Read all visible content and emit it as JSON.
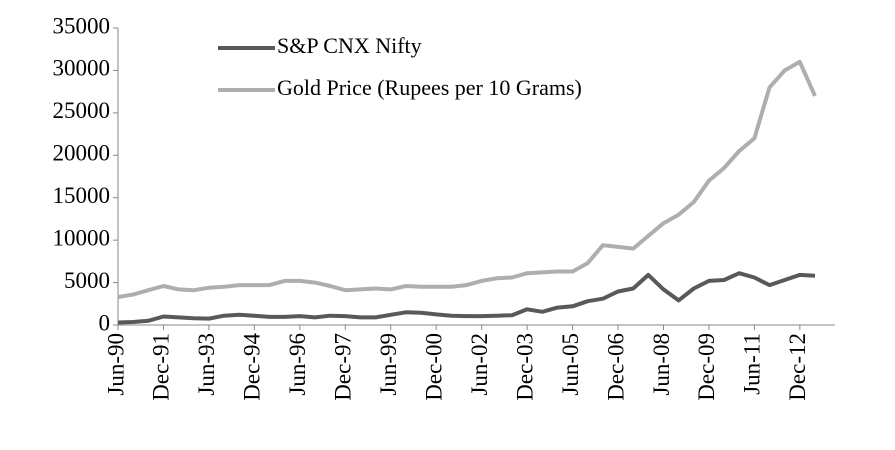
{
  "chart_data": {
    "type": "line",
    "categories": [
      "Jun-90",
      null,
      null,
      "Dec-91",
      null,
      null,
      "Jun-93",
      null,
      null,
      "Dec-94",
      null,
      null,
      "Jun-96",
      null,
      null,
      "Dec-97",
      null,
      null,
      "Jun-99",
      null,
      null,
      "Dec-00",
      null,
      null,
      "Jun-02",
      null,
      null,
      "Dec-03",
      null,
      null,
      "Jun-05",
      null,
      null,
      "Dec-06",
      null,
      null,
      "Jun-08",
      null,
      null,
      "Dec-09",
      null,
      null,
      "Jun-11",
      null,
      null,
      "Dec-12",
      null
    ],
    "series": [
      {
        "name": "S&P CNX Nifty",
        "color": "#595959",
        "values": [
          300,
          350,
          500,
          1000,
          900,
          800,
          750,
          1100,
          1200,
          1100,
          950,
          950,
          1050,
          900,
          1100,
          1050,
          900,
          900,
          1200,
          1500,
          1450,
          1250,
          1100,
          1050,
          1050,
          1100,
          1150,
          1850,
          1550,
          2050,
          2200,
          2800,
          3100,
          3950,
          4300,
          5900,
          4200,
          2900,
          4300,
          5200,
          5300,
          6100,
          5600,
          4700,
          5300,
          5900,
          5800
        ]
      },
      {
        "name": "Gold Price (Rupees per 10 Grams)",
        "color": "#aeaeae",
        "values": [
          3300,
          3600,
          4100,
          4600,
          4200,
          4100,
          4400,
          4500,
          4700,
          4700,
          4700,
          5200,
          5200,
          5000,
          4600,
          4100,
          4200,
          4300,
          4200,
          4600,
          4500,
          4500,
          4500,
          4700,
          5200,
          5500,
          5600,
          6100,
          6200,
          6300,
          6300,
          7300,
          9400,
          9200,
          9000,
          10500,
          12000,
          13000,
          14500,
          17000,
          18500,
          20500,
          22000,
          28000,
          30000,
          31000,
          27000
        ]
      }
    ],
    "ylim": [
      0,
      35000
    ],
    "yticks": [
      0,
      5000,
      10000,
      15000,
      20000,
      25000,
      30000,
      35000
    ]
  }
}
